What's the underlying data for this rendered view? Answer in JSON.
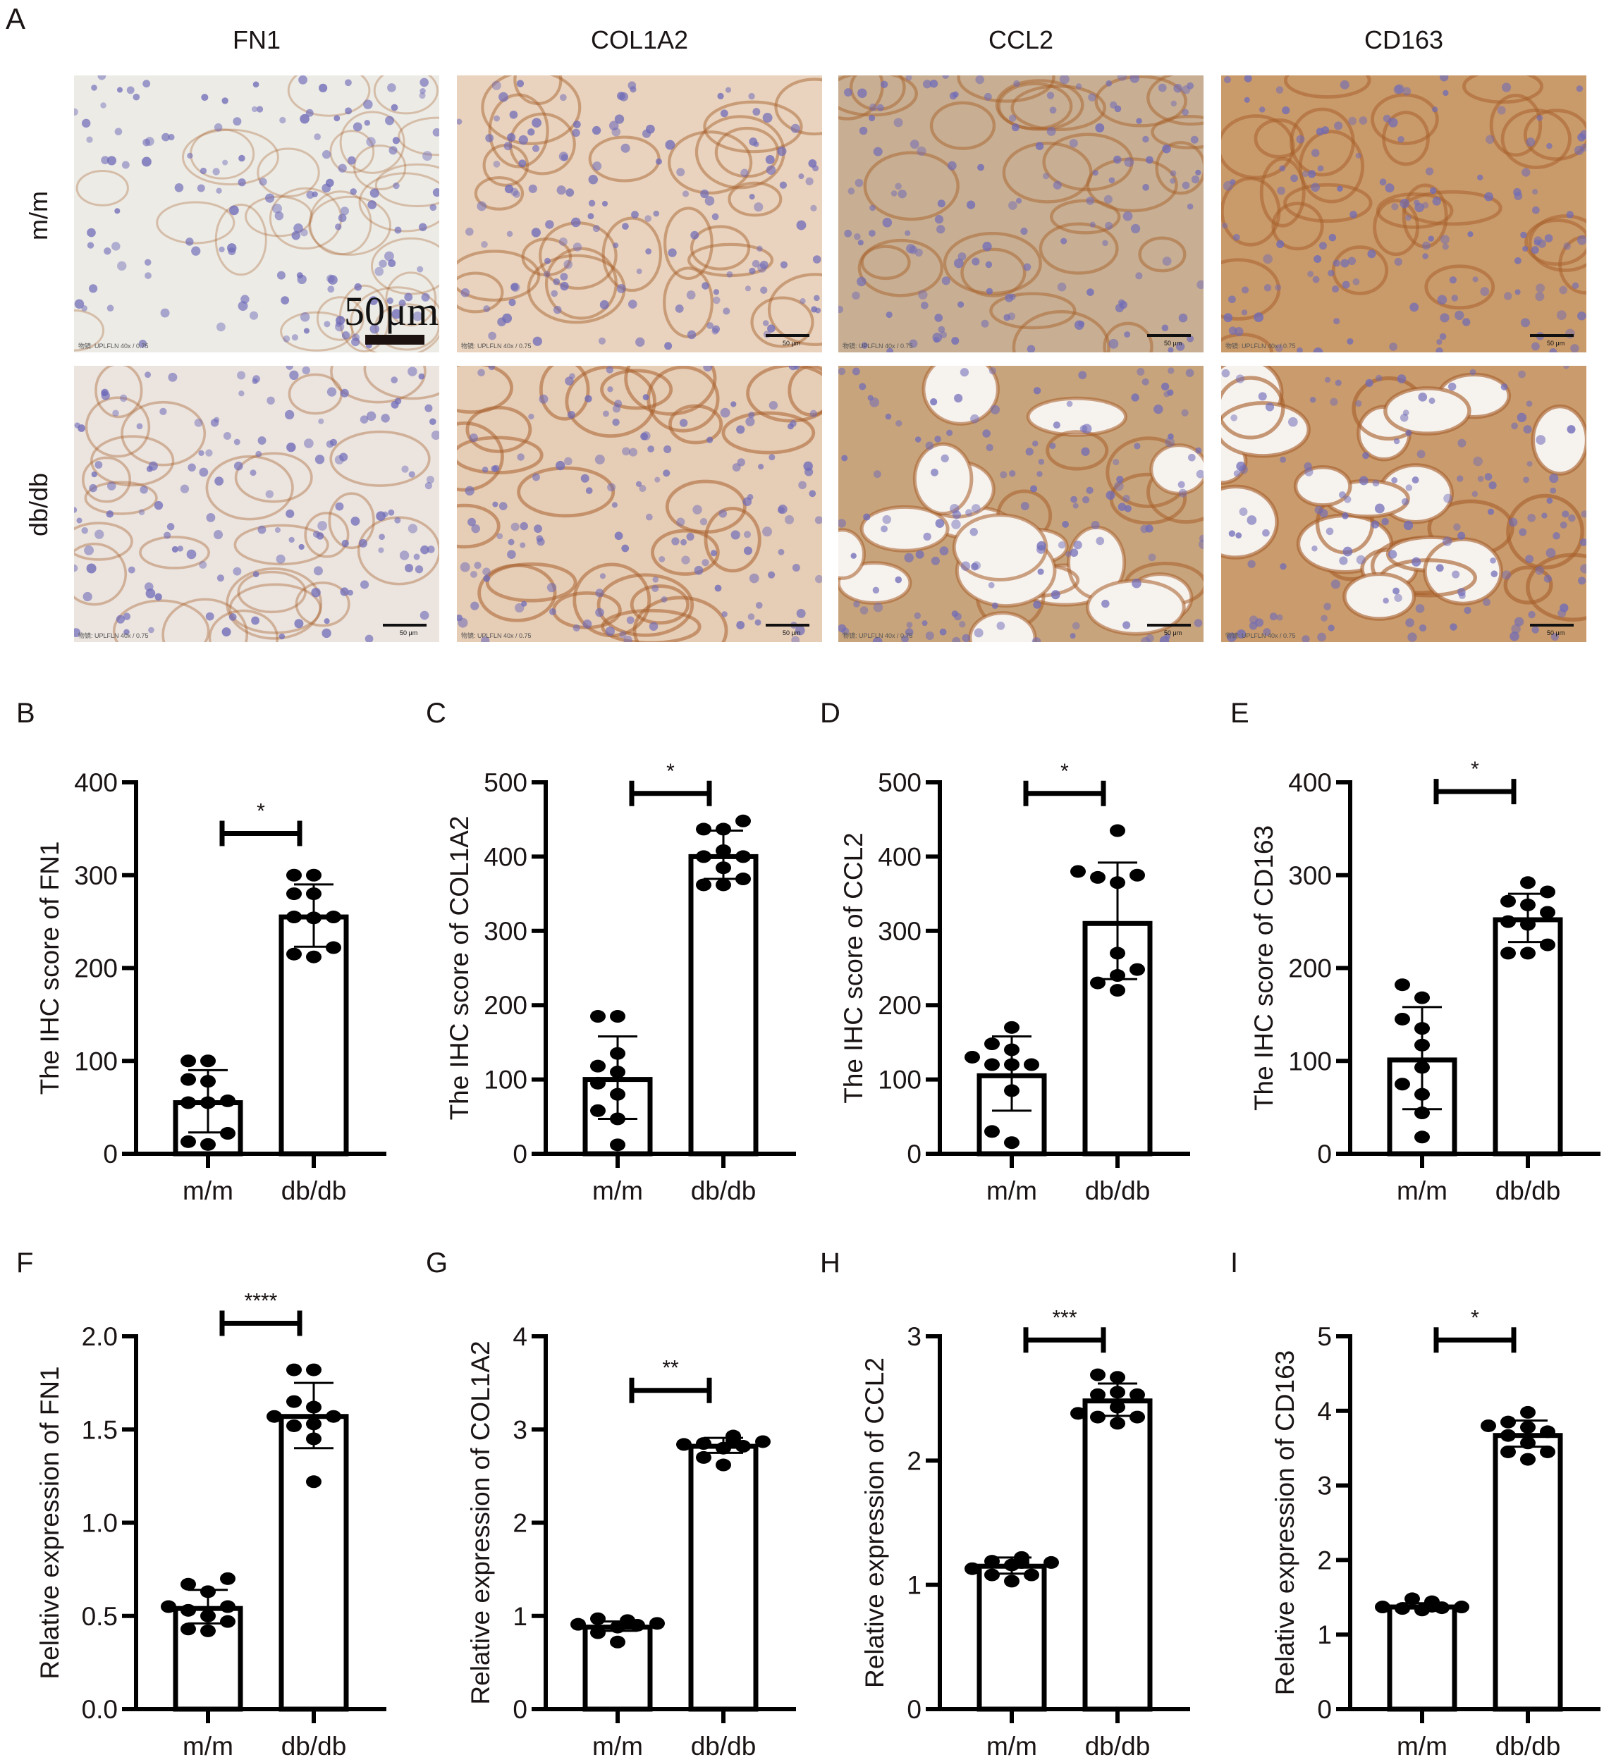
{
  "figure": {
    "panel_a": {
      "letter": "A",
      "columns": [
        "FN1",
        "COL1A2",
        "CCL2",
        "CD163"
      ],
      "rows": [
        "m/m",
        "db/db"
      ],
      "scale_bar_label": "50μm",
      "micro_scale_label": "50 μm",
      "objective_label": "物镜: UPLFLN 40x / 0.75",
      "tints": {
        "FN1": {
          "m/m": "#ecebe6",
          "db/db": "#ebe4df"
        },
        "COL1A2": {
          "m/m": "#e9d3be",
          "db/db": "#e6cdb6"
        },
        "CCL2": {
          "m/m": "#c8ae92",
          "db/db": "#c8a47c"
        },
        "CD163": {
          "m/m": "#c99a6a",
          "db/db": "#c99b6d"
        }
      },
      "stain_colors": {
        "brown": "#a8612c",
        "nuclei": "#6f6bb8"
      }
    }
  },
  "chart_data": [
    {
      "panel": "B",
      "type": "bar",
      "title": "",
      "xlabel": "",
      "ylabel": "The IHC score of FN1",
      "categories": [
        "m/m",
        "db/db"
      ],
      "values": [
        55,
        255
      ],
      "error_low": [
        23,
        223
      ],
      "error_high": [
        90,
        290
      ],
      "points": [
        [
          10,
          13,
          22,
          55,
          55,
          57,
          78,
          80,
          100,
          100
        ],
        [
          212,
          215,
          222,
          254,
          255,
          255,
          280,
          280,
          300,
          300
        ]
      ],
      "ylim": [
        0,
        400
      ],
      "yticks": [
        "0",
        "100",
        "200",
        "300",
        "400"
      ],
      "ytick_values": [
        0,
        100,
        200,
        300,
        400
      ],
      "significance": "*",
      "bracket_y": 345,
      "star_y": 370,
      "grid": false,
      "legend": "none"
    },
    {
      "panel": "C",
      "type": "bar",
      "title": "",
      "xlabel": "",
      "ylabel": "The IHC score of COL1A2",
      "categories": [
        "m/m",
        "db/db"
      ],
      "values": [
        100,
        400
      ],
      "error_low": [
        47,
        370
      ],
      "error_high": [
        158,
        435
      ],
      "points": [
        [
          12,
          47,
          58,
          80,
          95,
          110,
          118,
          135,
          185,
          185
        ],
        [
          362,
          362,
          370,
          385,
          400,
          400,
          408,
          437,
          437,
          448
        ]
      ],
      "ylim": [
        0,
        500
      ],
      "yticks": [
        "0",
        "100",
        "200",
        "300",
        "400",
        "500"
      ],
      "ytick_values": [
        0,
        100,
        200,
        300,
        400,
        500
      ],
      "significance": "*",
      "bracket_y": 485,
      "star_y": 515,
      "grid": false,
      "legend": "none"
    },
    {
      "panel": "D",
      "type": "bar",
      "title": "",
      "xlabel": "",
      "ylabel": "The IHC score of CCL2",
      "categories": [
        "m/m",
        "db/db"
      ],
      "values": [
        105,
        310
      ],
      "error_low": [
        58,
        235
      ],
      "error_high": [
        158,
        392
      ],
      "points": [
        [
          15,
          30,
          85,
          120,
          120,
          120,
          130,
          140,
          148,
          170
        ],
        [
          220,
          230,
          240,
          248,
          270,
          365,
          372,
          375,
          380,
          435
        ]
      ],
      "ylim": [
        0,
        500
      ],
      "yticks": [
        "0",
        "100",
        "200",
        "300",
        "400",
        "500"
      ],
      "ytick_values": [
        0,
        100,
        200,
        300,
        400,
        500
      ],
      "significance": "*",
      "bracket_y": 485,
      "star_y": 515,
      "grid": false,
      "legend": "none"
    },
    {
      "panel": "E",
      "type": "bar",
      "title": "",
      "xlabel": "",
      "ylabel": "The IHC score of CD163",
      "categories": [
        "m/m",
        "db/db"
      ],
      "values": [
        101,
        252
      ],
      "error_low": [
        48,
        228
      ],
      "error_high": [
        158,
        280
      ],
      "points": [
        [
          18,
          44,
          64,
          75,
          93,
          117,
          135,
          145,
          168,
          182
        ],
        [
          216,
          216,
          225,
          247,
          250,
          260,
          268,
          272,
          282,
          292
        ]
      ],
      "ylim": [
        0,
        400
      ],
      "yticks": [
        "0",
        "100",
        "200",
        "300",
        "400"
      ],
      "ytick_values": [
        0,
        100,
        200,
        300,
        400
      ],
      "significance": "*",
      "bracket_y": 390,
      "star_y": 415,
      "grid": false,
      "legend": "none"
    },
    {
      "panel": "F",
      "type": "bar",
      "title": "",
      "xlabel": "",
      "ylabel": "Relative expression of FN1",
      "categories": [
        "m/m",
        "db/db"
      ],
      "values": [
        0.54,
        1.57
      ],
      "error_low": [
        0.46,
        1.4
      ],
      "error_high": [
        0.64,
        1.75
      ],
      "points": [
        [
          0.42,
          0.43,
          0.47,
          0.5,
          0.53,
          0.55,
          0.55,
          0.63,
          0.67,
          0.7
        ],
        [
          1.22,
          1.45,
          1.52,
          1.53,
          1.57,
          1.57,
          1.62,
          1.65,
          1.82,
          1.82
        ]
      ],
      "ylim": [
        0,
        2.0
      ],
      "yticks": [
        "0.0",
        "0.5",
        "1.0",
        "1.5",
        "2.0"
      ],
      "ytick_values": [
        0,
        0.5,
        1.0,
        1.5,
        2.0
      ],
      "significance": "****",
      "bracket_y": 2.07,
      "star_y": 2.15,
      "grid": false,
      "legend": "none"
    },
    {
      "panel": "G",
      "type": "bar",
      "title": "",
      "xlabel": "",
      "ylabel": "Relative expression of COL1A2",
      "categories": [
        "m/m",
        "db/db"
      ],
      "values": [
        0.88,
        2.82
      ],
      "error_low": [
        0.84,
        2.75
      ],
      "error_high": [
        0.94,
        2.91
      ],
      "points": [
        [
          0.72,
          0.82,
          0.88,
          0.9,
          0.91,
          0.92,
          0.93,
          0.93,
          0.95,
          0.97
        ],
        [
          2.62,
          2.7,
          2.8,
          2.82,
          2.84,
          2.85,
          2.87,
          2.88,
          2.92,
          2.93
        ]
      ],
      "ylim": [
        0,
        4
      ],
      "yticks": [
        "0",
        "1",
        "2",
        "3",
        "4"
      ],
      "ytick_values": [
        0,
        1,
        2,
        3,
        4
      ],
      "significance": "**",
      "bracket_y": 3.42,
      "star_y": 3.6,
      "grid": false,
      "legend": "none"
    },
    {
      "panel": "H",
      "type": "bar",
      "title": "",
      "xlabel": "",
      "ylabel": "Relative expression of CCL2",
      "categories": [
        "m/m",
        "db/db"
      ],
      "values": [
        1.15,
        2.48
      ],
      "error_low": [
        1.09,
        2.36
      ],
      "error_high": [
        1.22,
        2.62
      ],
      "points": [
        [
          1.03,
          1.08,
          1.08,
          1.13,
          1.16,
          1.18,
          1.18,
          1.19,
          1.2,
          1.22
        ],
        [
          2.3,
          2.35,
          2.35,
          2.38,
          2.43,
          2.53,
          2.53,
          2.55,
          2.67,
          2.69
        ]
      ],
      "ylim": [
        0,
        3
      ],
      "yticks": [
        "0",
        "1",
        "2",
        "3"
      ],
      "ytick_values": [
        0,
        1,
        2,
        3
      ],
      "significance": "***",
      "bracket_y": 2.97,
      "star_y": 3.08,
      "grid": false,
      "legend": "none"
    },
    {
      "panel": "I",
      "type": "bar",
      "title": "",
      "xlabel": "",
      "ylabel": "Relative expression of CD163",
      "categories": [
        "m/m",
        "db/db"
      ],
      "values": [
        1.37,
        3.67
      ],
      "error_low": [
        1.35,
        3.52
      ],
      "error_high": [
        1.42,
        3.87
      ],
      "points": [
        [
          1.33,
          1.35,
          1.36,
          1.37,
          1.37,
          1.38,
          1.4,
          1.42,
          1.44,
          1.48
        ],
        [
          3.35,
          3.45,
          3.45,
          3.57,
          3.67,
          3.72,
          3.78,
          3.8,
          3.85,
          3.98
        ]
      ],
      "ylim": [
        0,
        5
      ],
      "yticks": [
        "0",
        "1",
        "2",
        "3",
        "4",
        "5"
      ],
      "ytick_values": [
        0,
        1,
        2,
        3,
        4,
        5
      ],
      "significance": "*",
      "bracket_y": 4.95,
      "star_y": 5.18,
      "grid": false,
      "legend": "none"
    }
  ],
  "layout_hints": {
    "point_color": "#000000",
    "bar_fill": "#ffffff",
    "bar_stroke": "#000000",
    "text_color": "#1a1414"
  }
}
